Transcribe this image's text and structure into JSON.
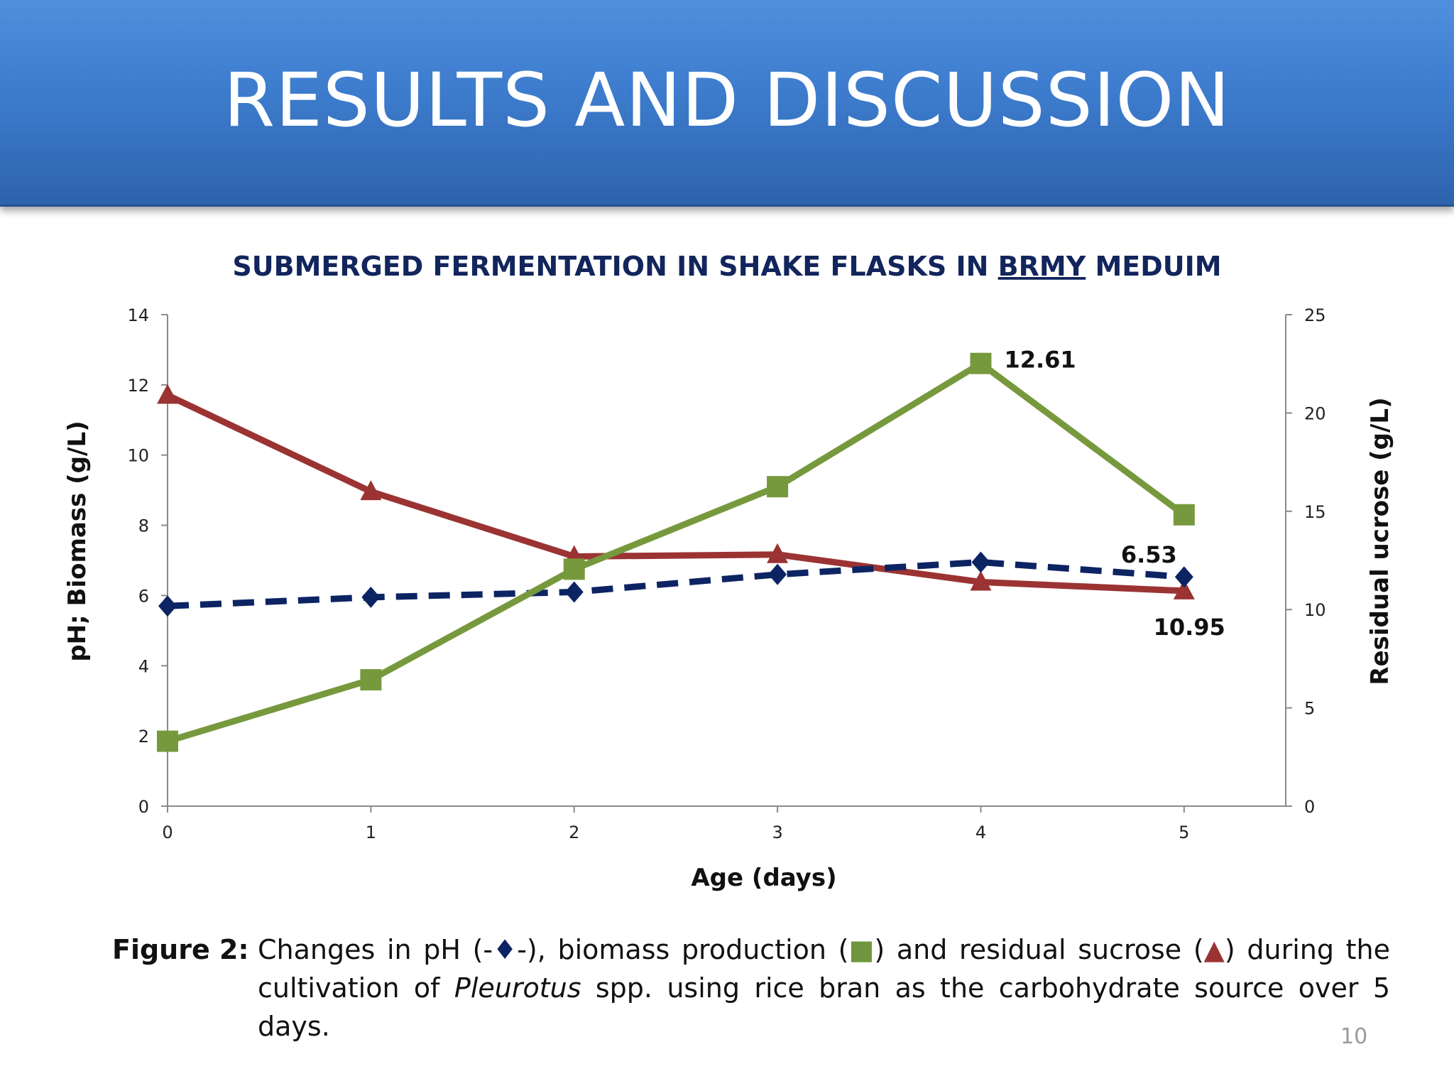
{
  "slide": {
    "title": "RESULTS AND DISCUSSION",
    "page_number": "10"
  },
  "caption": {
    "label": "Figure 2:",
    "w1": "Changes",
    "w2": "in",
    "w3": "pH",
    "pre_sym1": "(-",
    "sym_diamond": "♦",
    "post_sym1": "-),",
    "w4": "biomass",
    "w5": "production",
    "pre_sym2": "(",
    "sym_square": "■",
    "post_sym2": ")",
    "w6": "and",
    "w7": "residual",
    "w8": "sucrose",
    "pre_sym3": "(",
    "sym_triangle": "▲",
    "post_sym3": ")",
    "w9": "during",
    "w10": "the",
    "line2_pre": "cultivation of ",
    "line2_italic": "Pleurotus",
    "line2_post": " spp. using rice bran as the carbohydrate source over 5 days."
  },
  "chart_data": {
    "type": "line",
    "title_pre": "SUBMERGED FERMENTATION IN SHAKE FLASKS IN ",
    "title_underlined": "BRMY",
    "title_post": " MEDUIM",
    "xlabel": "Age (days)",
    "ylabel_left": "pH; Biomass (g/L)",
    "ylabel_right": "Residual ucrose (g/L)",
    "x": [
      0,
      1,
      2,
      3,
      4,
      5
    ],
    "xlim": [
      0,
      5.5
    ],
    "ylim_left": [
      0,
      14
    ],
    "ylim_right": [
      0,
      25
    ],
    "yticks_left": [
      0,
      2,
      4,
      6,
      8,
      10,
      12,
      14
    ],
    "yticks_right": [
      0,
      5,
      10,
      15,
      20,
      25
    ],
    "grid": false,
    "series": [
      {
        "name": "pH",
        "axis": "left",
        "marker": "diamond",
        "style": "dashed",
        "color": "#0d2463",
        "values": [
          5.7,
          5.95,
          6.1,
          6.6,
          6.95,
          6.53
        ]
      },
      {
        "name": "Biomass",
        "axis": "left",
        "marker": "square",
        "style": "solid",
        "color": "#77993d",
        "values": [
          1.85,
          3.6,
          6.75,
          9.1,
          12.61,
          8.3
        ]
      },
      {
        "name": "Residual sucrose",
        "axis": "right",
        "marker": "triangle",
        "style": "solid",
        "color": "#9b3333",
        "values": [
          20.9,
          16.0,
          12.7,
          12.8,
          11.4,
          10.95
        ]
      }
    ],
    "annotations": [
      {
        "text": "12.61",
        "series": "Biomass",
        "point": 4
      },
      {
        "text": "6.53",
        "series": "pH",
        "point": 5
      },
      {
        "text": "10.95",
        "series": "Residual sucrose",
        "point": 5
      }
    ]
  }
}
